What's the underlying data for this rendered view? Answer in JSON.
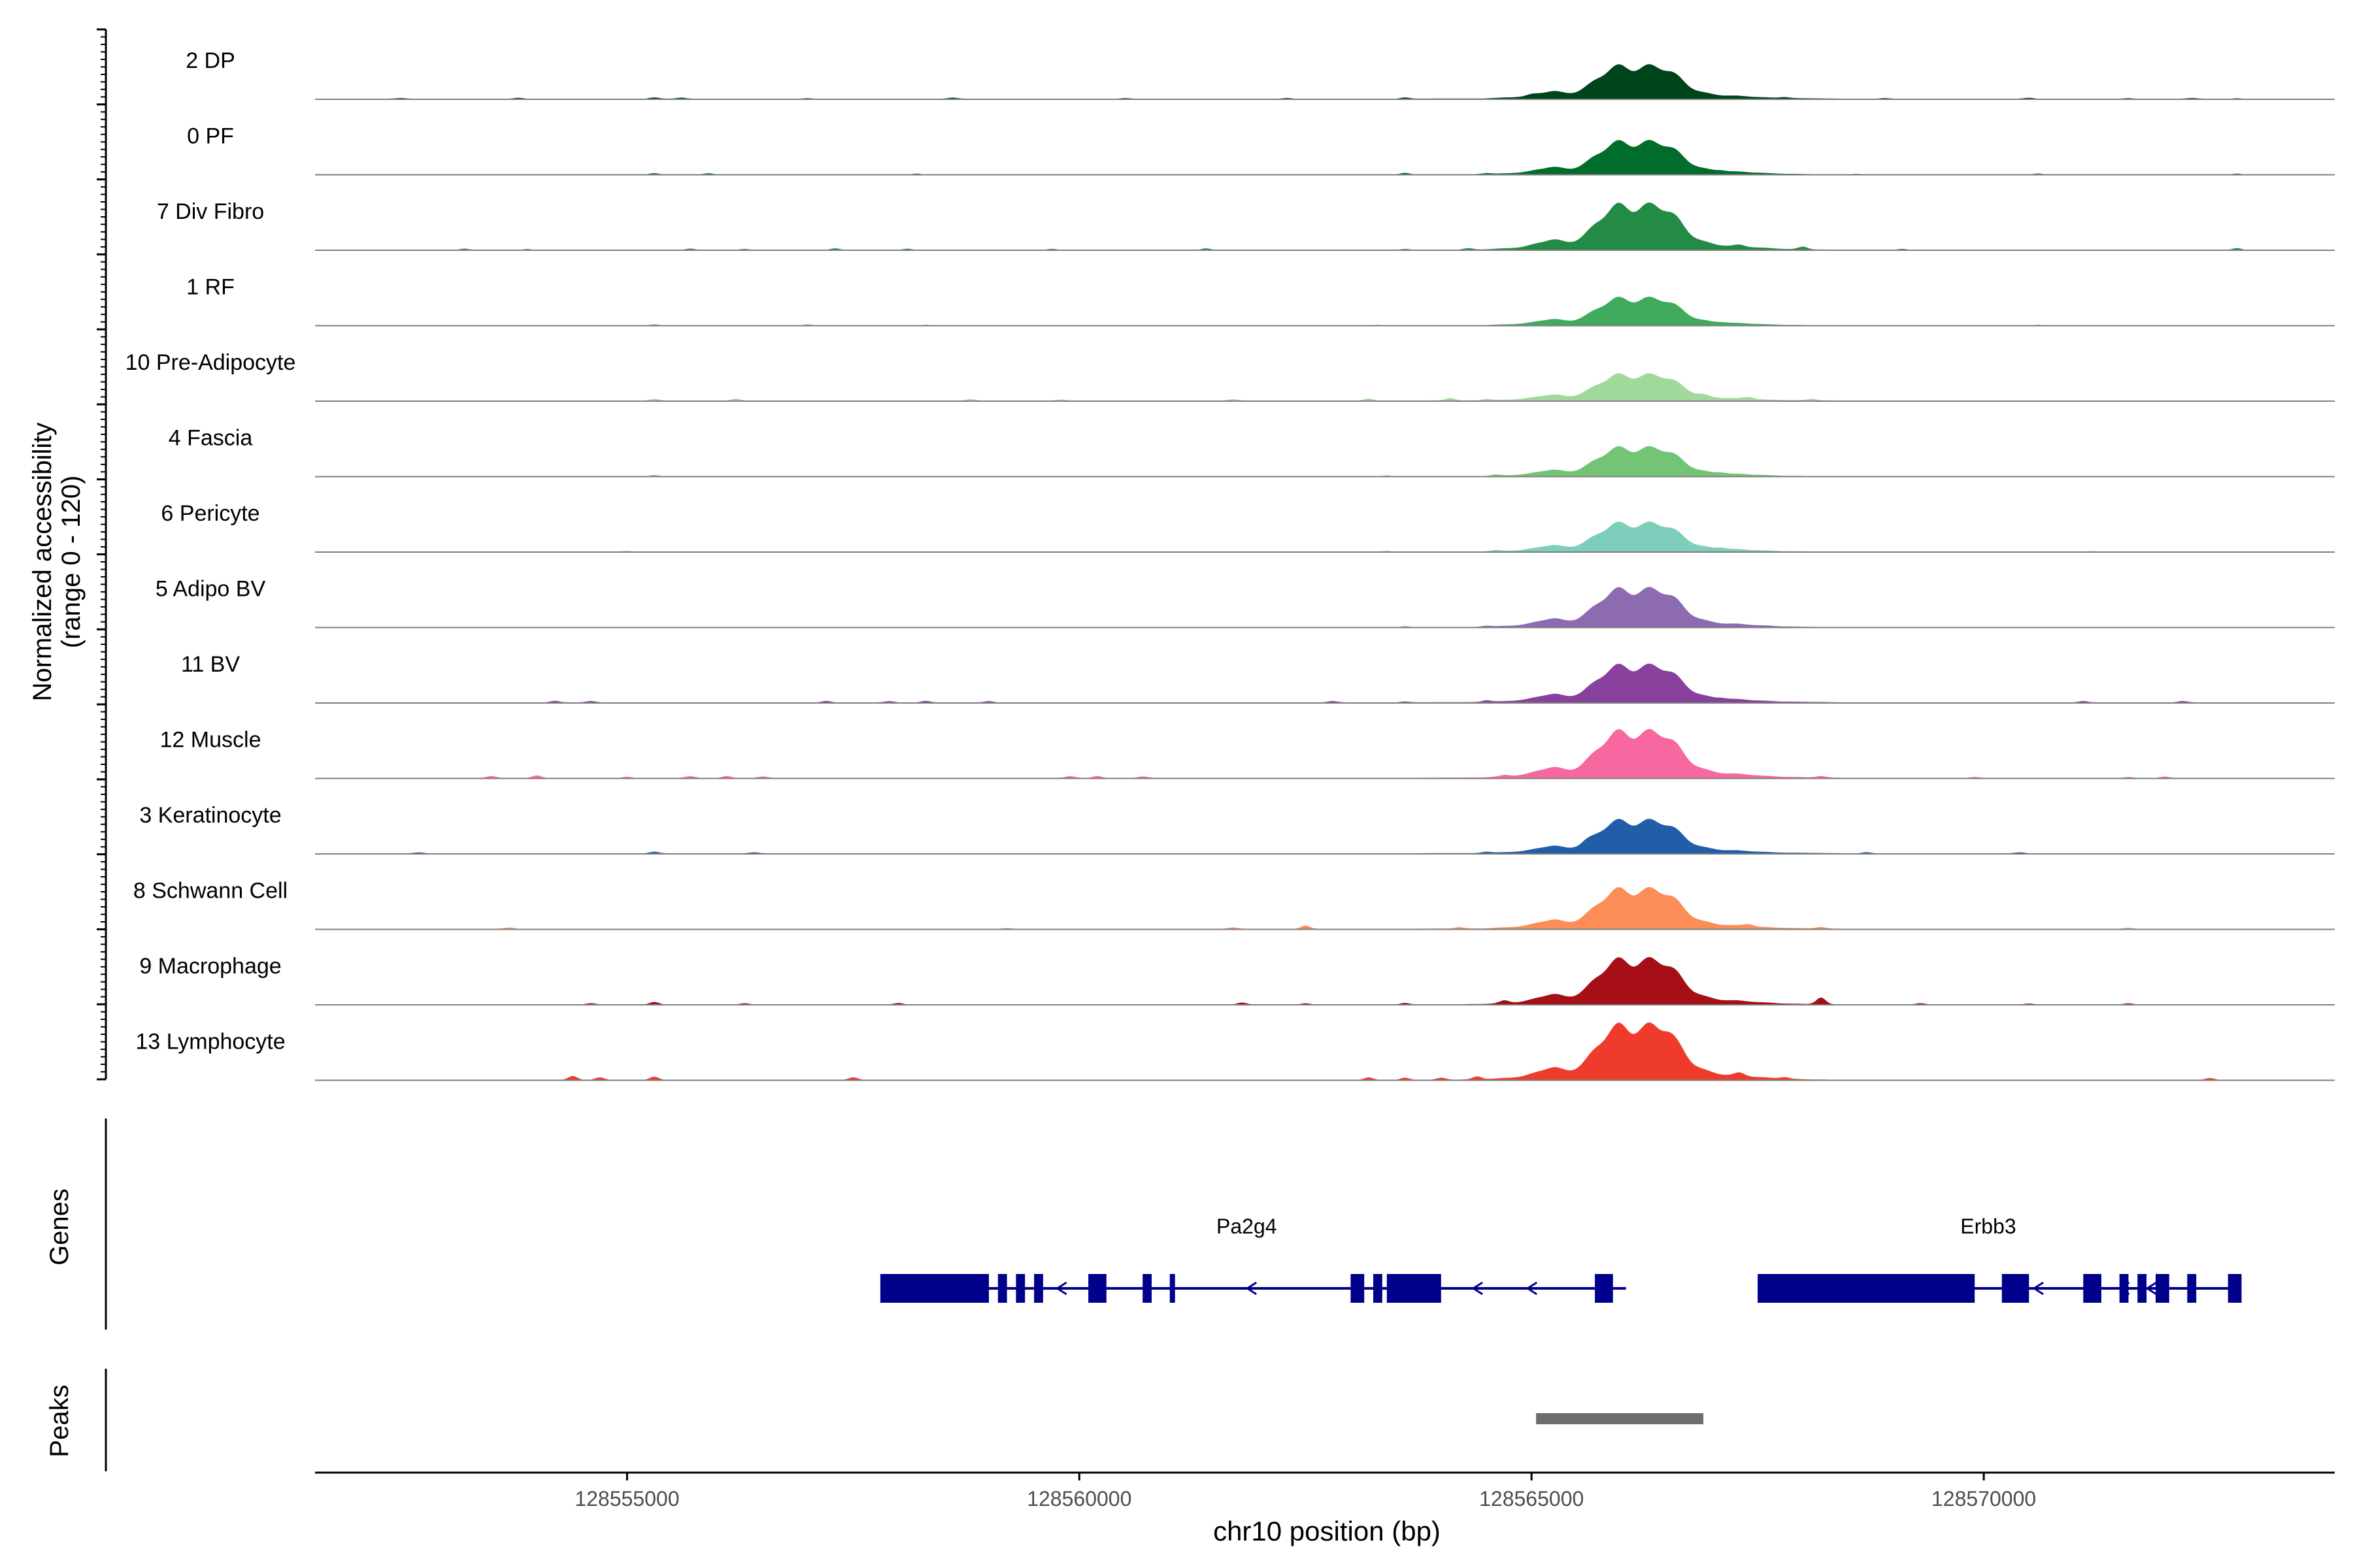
{
  "chart_data": {
    "type": "area",
    "title": "",
    "ylabel_line1": "Normalized accessibility",
    "ylabel_line2": "(range 0 - 120)",
    "ylim": [
      0,
      120
    ],
    "xlabel": "chr10 position (bp)",
    "xlim": [
      128551550,
      128573880
    ],
    "xticks": [
      128555000,
      128560000,
      128565000,
      128570000
    ],
    "xtick_labels": [
      "128555000",
      "128560000",
      "128565000",
      "128570000"
    ],
    "tracks": [
      {
        "name": "2 DP",
        "color": "#00441b",
        "peak": 120,
        "baseline": 2,
        "spikes": [
          [
            128552500,
            2
          ],
          [
            128553800,
            3
          ],
          [
            128555300,
            4
          ],
          [
            128555600,
            3
          ],
          [
            128557000,
            2
          ],
          [
            128558600,
            3
          ],
          [
            128560500,
            2
          ],
          [
            128562300,
            3
          ],
          [
            128563600,
            4
          ],
          [
            128565000,
            3
          ],
          [
            128567800,
            3
          ],
          [
            128568900,
            2
          ],
          [
            128570500,
            3
          ],
          [
            128571600,
            2
          ],
          [
            128572300,
            2
          ],
          [
            128572800,
            2
          ]
        ]
      },
      {
        "name": "0 PF",
        "color": "#006d2c",
        "peak": 120,
        "baseline": 1,
        "spikes": [
          [
            128555300,
            4
          ],
          [
            128555900,
            4
          ],
          [
            128558200,
            3
          ],
          [
            128563600,
            5
          ],
          [
            128564500,
            3
          ],
          [
            128567100,
            3
          ],
          [
            128568600,
            2
          ],
          [
            128570600,
            3
          ],
          [
            128572800,
            3
          ]
        ]
      },
      {
        "name": "7 Div Fibro",
        "color": "#238b45",
        "peak": 165,
        "baseline": 1,
        "spikes": [
          [
            128553200,
            4
          ],
          [
            128553900,
            3
          ],
          [
            128555700,
            4
          ],
          [
            128556300,
            3
          ],
          [
            128557300,
            5
          ],
          [
            128558100,
            4
          ],
          [
            128559700,
            3
          ],
          [
            128561400,
            5
          ],
          [
            128563600,
            3
          ],
          [
            128564300,
            4
          ],
          [
            128567300,
            4
          ],
          [
            128568000,
            8
          ],
          [
            128569100,
            3
          ],
          [
            128572800,
            6
          ]
        ]
      },
      {
        "name": "1 RF",
        "color": "#41ab5d",
        "peak": 100,
        "baseline": 1,
        "spikes": [
          [
            128555300,
            3
          ],
          [
            128557000,
            3
          ],
          [
            128558300,
            2
          ],
          [
            128563300,
            2
          ],
          [
            128567100,
            2
          ],
          [
            128570600,
            2
          ]
        ]
      },
      {
        "name": "10 Pre-Adipocyte",
        "color": "#a1d99b",
        "peak": 95,
        "baseline": 2,
        "spikes": [
          [
            128555300,
            5
          ],
          [
            128556200,
            6
          ],
          [
            128558800,
            4
          ],
          [
            128559800,
            3
          ],
          [
            128561700,
            4
          ],
          [
            128563200,
            6
          ],
          [
            128564100,
            7
          ],
          [
            128564500,
            4
          ],
          [
            128566900,
            4
          ],
          [
            128567400,
            6
          ],
          [
            128568100,
            4
          ]
        ]
      },
      {
        "name": "4 Fascia",
        "color": "#74c476",
        "peak": 105,
        "baseline": 1,
        "spikes": [
          [
            128555300,
            4
          ],
          [
            128563400,
            3
          ],
          [
            128564600,
            3
          ],
          [
            128567100,
            3
          ]
        ]
      },
      {
        "name": "6 Pericyte",
        "color": "#7fcdbb",
        "peak": 105,
        "baseline": 1,
        "spikes": [
          [
            128555000,
            3
          ],
          [
            128563400,
            3
          ],
          [
            128564600,
            3
          ],
          [
            128567100,
            4
          ],
          [
            128571200,
            2
          ]
        ]
      },
      {
        "name": "5 Adipo BV",
        "color": "#8c6bb1",
        "peak": 140,
        "baseline": 1,
        "spikes": [
          [
            128563600,
            3
          ],
          [
            128564500,
            3
          ]
        ]
      },
      {
        "name": "11 BV",
        "color": "#88419d",
        "peak": 135,
        "baseline": 2,
        "spikes": [
          [
            128554200,
            5
          ],
          [
            128554600,
            4
          ],
          [
            128557200,
            5
          ],
          [
            128557900,
            4
          ],
          [
            128558300,
            5
          ],
          [
            128559000,
            4
          ],
          [
            128562800,
            4
          ],
          [
            128563600,
            3
          ],
          [
            128564500,
            5
          ],
          [
            128567100,
            3
          ],
          [
            128571100,
            4
          ],
          [
            128572200,
            4
          ]
        ]
      },
      {
        "name": "12 Muscle",
        "color": "#f768a1",
        "peak": 170,
        "baseline": 2,
        "spikes": [
          [
            128553500,
            5
          ],
          [
            128554000,
            8
          ],
          [
            128555000,
            4
          ],
          [
            128555700,
            5
          ],
          [
            128556100,
            6
          ],
          [
            128556500,
            4
          ],
          [
            128559900,
            5
          ],
          [
            128560200,
            6
          ],
          [
            128560700,
            4
          ],
          [
            128564700,
            4
          ],
          [
            128568200,
            4
          ],
          [
            128569900,
            3
          ],
          [
            128571600,
            3
          ],
          [
            128572000,
            4
          ]
        ]
      },
      {
        "name": "3 Keratinocyte",
        "color": "#225ea8",
        "peak": 120,
        "baseline": 2,
        "spikes": [
          [
            128552700,
            3
          ],
          [
            128555300,
            5
          ],
          [
            128556400,
            3
          ],
          [
            128564500,
            4
          ],
          [
            128565600,
            5
          ],
          [
            128568700,
            4
          ],
          [
            128570400,
            3
          ]
        ]
      },
      {
        "name": "8 Schwann Cell",
        "color": "#fc8d59",
        "peak": 145,
        "baseline": 2,
        "spikes": [
          [
            128553700,
            4
          ],
          [
            128559200,
            3
          ],
          [
            128561700,
            4
          ],
          [
            128562500,
            10
          ],
          [
            128564200,
            4
          ],
          [
            128567400,
            6
          ],
          [
            128568200,
            4
          ],
          [
            128571600,
            3
          ]
        ]
      },
      {
        "name": "9 Macrophage",
        "color": "#a50f15",
        "peak": 165,
        "baseline": 1,
        "spikes": [
          [
            128554600,
            4
          ],
          [
            128555300,
            8
          ],
          [
            128556300,
            4
          ],
          [
            128558000,
            5
          ],
          [
            128561800,
            6
          ],
          [
            128562500,
            4
          ],
          [
            128563600,
            5
          ],
          [
            128564700,
            8
          ],
          [
            128568200,
            20
          ],
          [
            128569300,
            4
          ],
          [
            128570500,
            3
          ],
          [
            128571600,
            4
          ]
        ]
      },
      {
        "name": "13 Lymphocyte",
        "color": "#ef3b2c",
        "peak": 200,
        "baseline": 1,
        "spikes": [
          [
            128554400,
            12
          ],
          [
            128554700,
            8
          ],
          [
            128555300,
            10
          ],
          [
            128557500,
            8
          ],
          [
            128563200,
            8
          ],
          [
            128563600,
            7
          ],
          [
            128564000,
            6
          ],
          [
            128564400,
            9
          ],
          [
            128566500,
            6
          ],
          [
            128567300,
            8
          ],
          [
            128567800,
            5
          ],
          [
            128572500,
            6
          ]
        ]
      }
    ],
    "genes_label": "Genes",
    "genes": [
      {
        "name": "Pa2g4",
        "strand": "-",
        "start": 128557800,
        "end": 128565900,
        "exons": [
          [
            128557800,
            128559000
          ],
          [
            128559100,
            128559200
          ],
          [
            128559300,
            128559400
          ],
          [
            128559500,
            128559600
          ],
          [
            128560100,
            128560300
          ],
          [
            128560700,
            128560800
          ],
          [
            128561000,
            128561050
          ],
          [
            128563000,
            128563150
          ],
          [
            128563250,
            128563350
          ],
          [
            128563400,
            128564000
          ],
          [
            128565700,
            128565900
          ]
        ],
        "arrows": [
          128559800,
          128561900,
          128564400,
          128565000
        ]
      },
      {
        "name": "Erbb3",
        "strand": "-",
        "start": 128567500,
        "end": 128572600,
        "exons": [
          [
            128567500,
            128569900
          ],
          [
            128570200,
            128570500
          ],
          [
            128571100,
            128571300
          ],
          [
            128571500,
            128571600
          ],
          [
            128571700,
            128571800
          ],
          [
            128571900,
            128572050
          ],
          [
            128572250,
            128572350
          ],
          [
            128572700,
            128572850
          ]
        ],
        "arrows": [
          128570600,
          128571550,
          128571850
        ]
      }
    ],
    "peaks_label": "Peaks",
    "peaks": [
      [
        128565050,
        128566900
      ]
    ]
  }
}
